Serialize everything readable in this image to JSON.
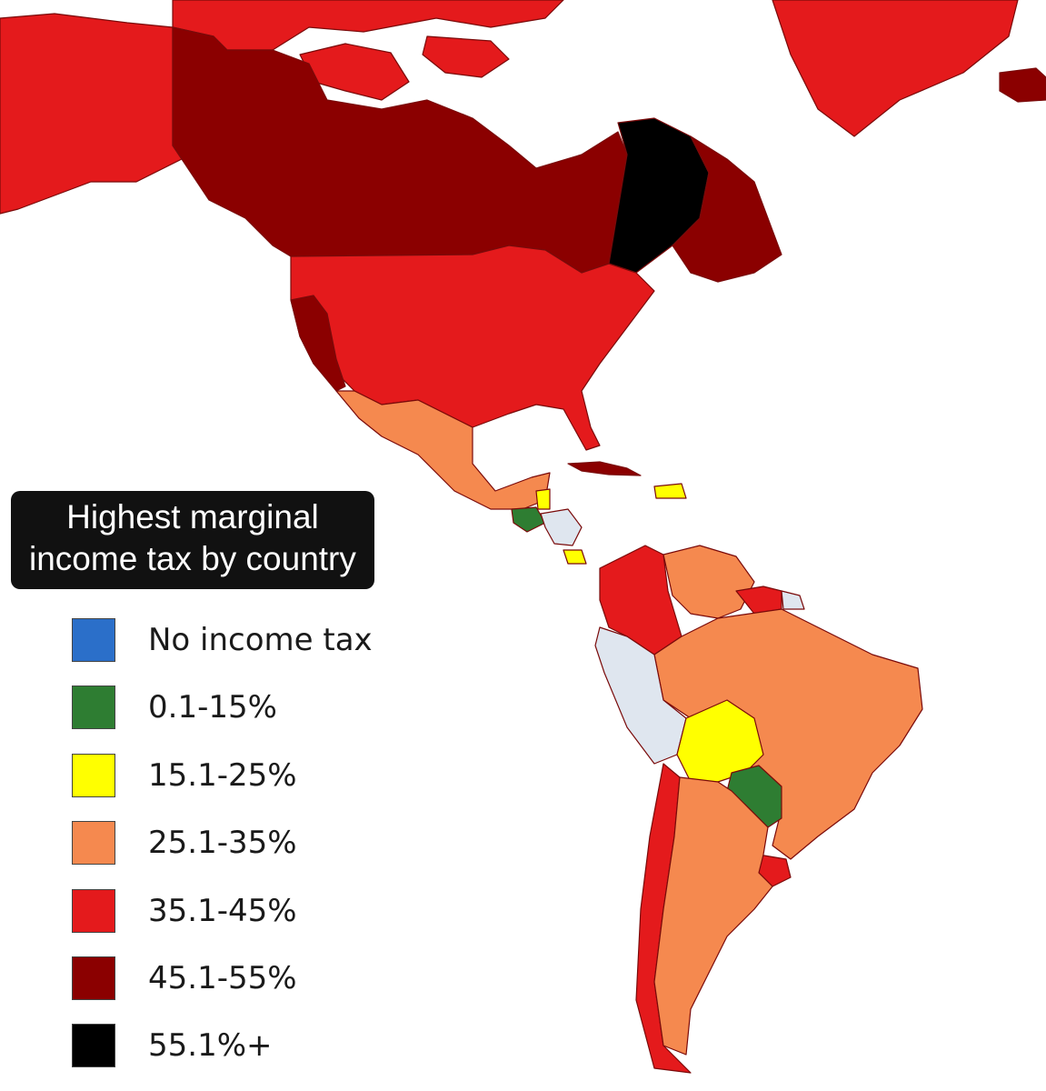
{
  "title": {
    "line1": "Highest marginal",
    "line2": "income tax by country"
  },
  "legend": [
    {
      "label": "No income tax",
      "color": "#2b6fc9"
    },
    {
      "label": "0.1-15%",
      "color": "#2e7d32"
    },
    {
      "label": "15.1-25%",
      "color": "#ffff00"
    },
    {
      "label": "25.1-35%",
      "color": "#f5894f"
    },
    {
      "label": "35.1-45%",
      "color": "#e41a1c"
    },
    {
      "label": "45.1-55%",
      "color": "#8b0000"
    },
    {
      "label": "55.1%+",
      "color": "#000000"
    }
  ],
  "colors": {
    "ocean": "#ffffff",
    "no_data": "#dfe6ef",
    "border": "#7a0a0a"
  },
  "regions": [
    {
      "name": "Alaska",
      "bracket": "35.1-45%"
    },
    {
      "name": "Northern Canada",
      "bracket": "35.1-45%"
    },
    {
      "name": "Western and Central Canada",
      "bracket": "45.1-55%"
    },
    {
      "name": "Quebec",
      "bracket": "55.1%+"
    },
    {
      "name": "Atlantic Canada",
      "bracket": "45.1-55%"
    },
    {
      "name": "Greenland",
      "bracket": "35.1-45%"
    },
    {
      "name": "Iceland",
      "bracket": "45.1-55%"
    },
    {
      "name": "United States",
      "bracket": "35.1-45%"
    },
    {
      "name": "California",
      "bracket": "45.1-55%"
    },
    {
      "name": "Mexico",
      "bracket": "25.1-35%"
    },
    {
      "name": "Cuba",
      "bracket": "45.1-55%"
    },
    {
      "name": "Guatemala",
      "bracket": "0.1-15%"
    },
    {
      "name": "Belize",
      "bracket": "15.1-25%"
    },
    {
      "name": "Colombia",
      "bracket": "35.1-45%"
    },
    {
      "name": "Venezuela",
      "bracket": "25.1-35%"
    },
    {
      "name": "Suriname",
      "bracket": "35.1-45%"
    },
    {
      "name": "Brazil",
      "bracket": "25.1-35%"
    },
    {
      "name": "Bolivia",
      "bracket": "15.1-25%"
    },
    {
      "name": "Paraguay",
      "bracket": "0.1-15%"
    },
    {
      "name": "Uruguay",
      "bracket": "35.1-45%"
    },
    {
      "name": "Chile",
      "bracket": "35.1-45%"
    },
    {
      "name": "Argentina",
      "bracket": "25.1-35%"
    }
  ]
}
